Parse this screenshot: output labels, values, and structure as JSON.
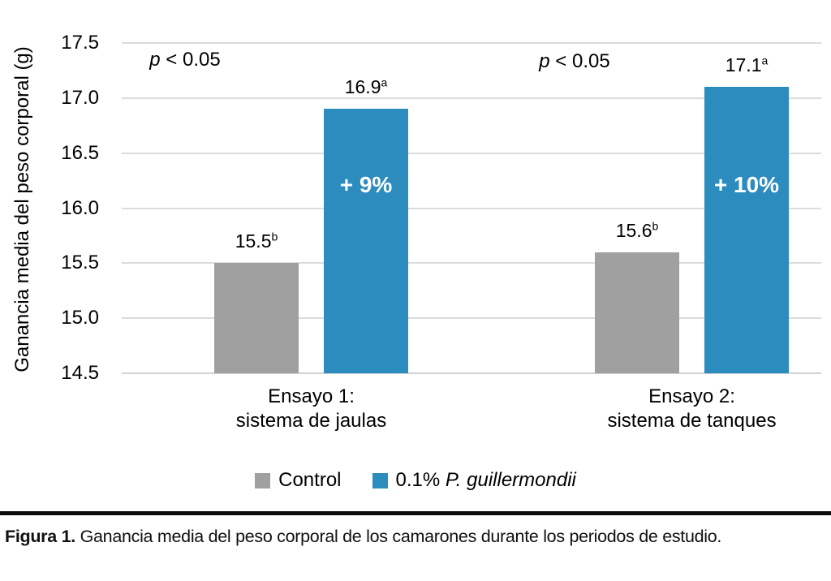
{
  "figure": {
    "caption_label": "Figura 1.",
    "caption_text": " Ganancia media del peso corporal de los camarones durante los periodos de estudio."
  },
  "chart_data": {
    "type": "bar",
    "title": "",
    "xlabel": "",
    "ylabel": "Ganancia media del peso corporal (g)",
    "ylim": [
      14.5,
      17.5
    ],
    "yticks": [
      14.5,
      15.0,
      15.5,
      16.0,
      16.5,
      17.0,
      17.5
    ],
    "grid": true,
    "legend_position": "bottom-center",
    "categories": [
      {
        "line1": "Ensayo 1:",
        "line2": "sistema de jaulas"
      },
      {
        "line1": "Ensayo 2:",
        "line2": "sistema de tanques"
      }
    ],
    "series": [
      {
        "name": "Control",
        "color": "#a0a0a0",
        "values": [
          15.5,
          15.6
        ],
        "value_labels": [
          {
            "text": "15.5",
            "sup": "b"
          },
          {
            "text": "15.6",
            "sup": "b"
          }
        ]
      },
      {
        "name_prefix": "0.1% ",
        "name_italic": "P. guillermondii",
        "name": "0.1% P. guillermondii",
        "color": "#2c8cbe",
        "values": [
          16.9,
          17.1
        ],
        "value_labels": [
          {
            "text": "16.9",
            "sup": "a"
          },
          {
            "text": "17.1",
            "sup": "a"
          }
        ],
        "percent_labels": [
          "+ 9%",
          "+ 10%"
        ]
      }
    ],
    "annotations": [
      {
        "text_italic": "p",
        "text_rest": " < 0.05"
      },
      {
        "text_italic": "p",
        "text_rest": " < 0.05"
      }
    ]
  }
}
